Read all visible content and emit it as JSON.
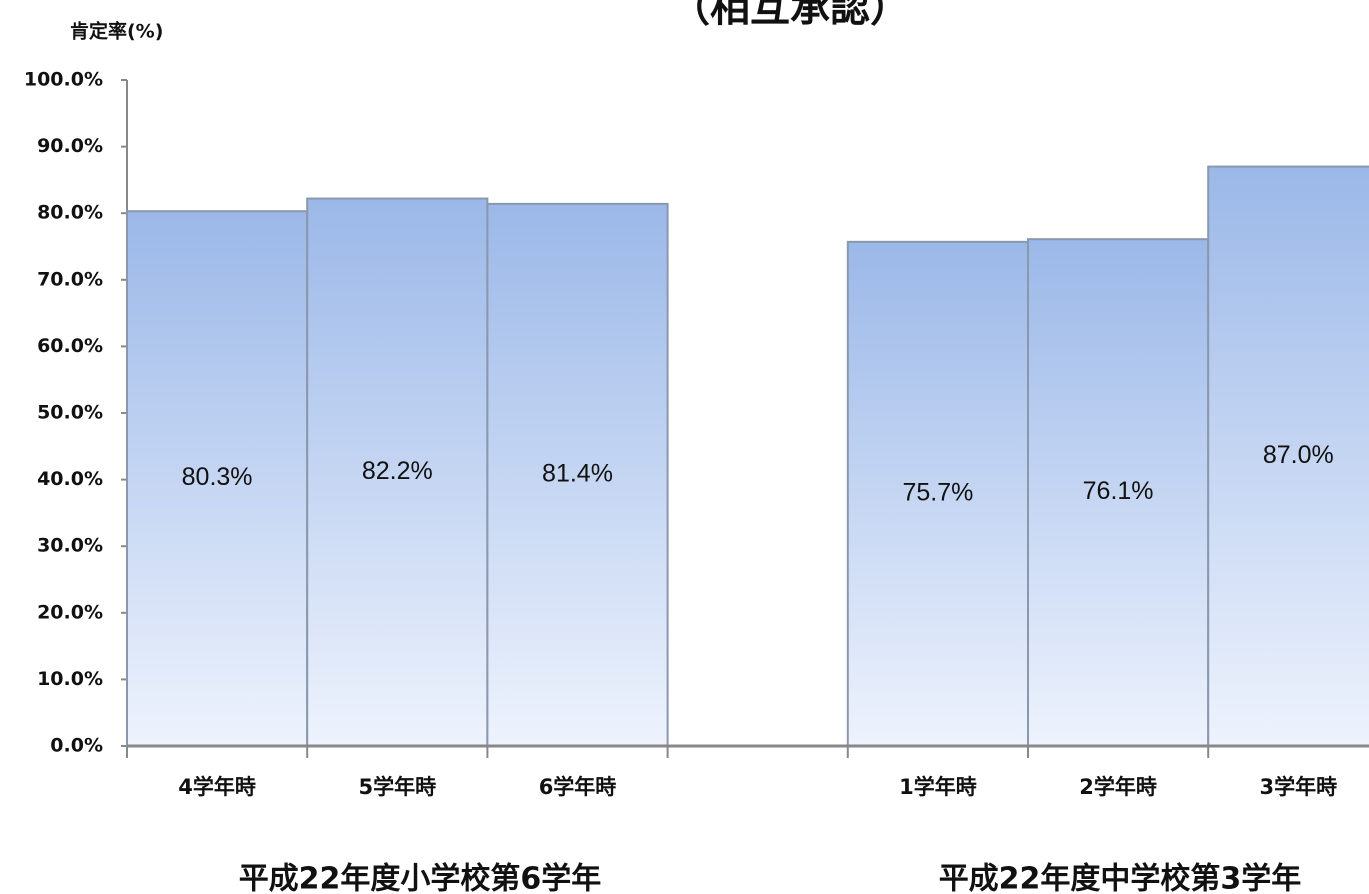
{
  "chart_data": {
    "type": "bar",
    "title": "（相互承認）",
    "y_label": "肯定率(%)",
    "categories": [
      "4学年時",
      "5学年時",
      "6学年時",
      null,
      "1学年時",
      "2学年時",
      "3学年時"
    ],
    "values": [
      80.3,
      82.2,
      81.4,
      null,
      75.7,
      76.1,
      87.0
    ],
    "value_labels": [
      "80.3%",
      "82.2%",
      "81.4%",
      null,
      "75.7%",
      "76.1%",
      "87.0%"
    ],
    "group_labels": [
      "平成22年度小学校第6学年",
      "平成22年度中学校第3学年"
    ],
    "color": "#9bb8e8",
    "ylim": [
      0,
      100
    ],
    "yticks": [
      {
        "value": 0,
        "label": "0.0%"
      },
      {
        "value": 10,
        "label": "10.0%"
      },
      {
        "value": 20,
        "label": "20.0%"
      },
      {
        "value": 30,
        "label": "30.0%"
      },
      {
        "value": 40,
        "label": "40.0%"
      },
      {
        "value": 50,
        "label": "50.0%"
      },
      {
        "value": 60,
        "label": "60.0%"
      },
      {
        "value": 70,
        "label": "70.0%"
      },
      {
        "value": 80,
        "label": "80.0%"
      },
      {
        "value": 90,
        "label": "90.0%"
      },
      {
        "value": 100,
        "label": "100.0%"
      }
    ],
    "grid": false
  }
}
